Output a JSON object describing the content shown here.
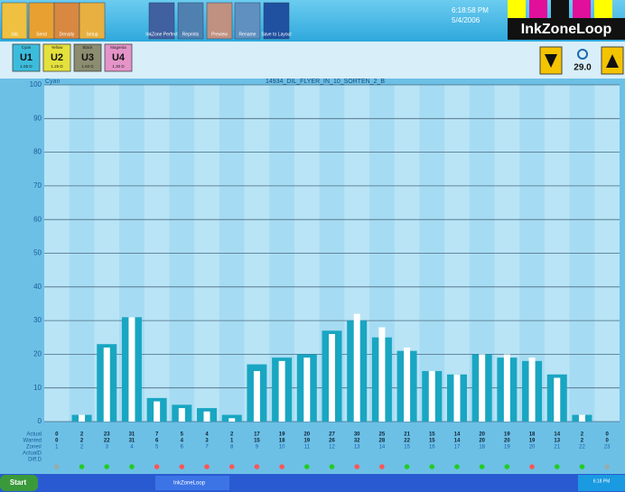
{
  "toolbar": {
    "buttons": [
      "Job",
      "Send",
      "Density",
      "Setup",
      "InkZone Perfect",
      "Reprints",
      "Preview",
      "Rename",
      "Save to Layout"
    ]
  },
  "clock": {
    "time": "6:18:58 PM",
    "date": "5/4/2006"
  },
  "brand": "InkZoneLoop",
  "units": [
    {
      "name": "Cyan",
      "id": "U1",
      "density": "1.55 D",
      "color": "#3cbcdc"
    },
    {
      "name": "Yellow",
      "id": "U2",
      "density": "1.25 D",
      "color": "#e4e03c"
    },
    {
      "name": "Black",
      "id": "U3",
      "density": "1.50 D",
      "color": "#8c8c70"
    },
    {
      "name": "Magenta",
      "id": "U4",
      "density": "1.30 D",
      "color": "#e494c8"
    }
  ],
  "zoom_value": "29.0",
  "chart_data": {
    "type": "bar",
    "title": "14934_DIL_FLYER_IN_10_SORTEN_2_B",
    "ink_label": "Cyan",
    "categories": [
      "1",
      "2",
      "3",
      "4",
      "5",
      "6",
      "7",
      "8",
      "9",
      "10",
      "11",
      "12",
      "13",
      "14",
      "15",
      "16",
      "17",
      "18",
      "19",
      "20",
      "21",
      "22",
      "23"
    ],
    "category_label": "Zone#",
    "series": [
      {
        "name": "Actual",
        "color": "#19a6c2",
        "values": [
          0,
          2,
          23,
          31,
          7,
          5,
          4,
          2,
          17,
          19,
          20,
          27,
          30,
          25,
          21,
          15,
          14,
          20,
          19,
          18,
          14,
          2,
          0
        ]
      },
      {
        "name": "Wanted",
        "color": "#ffffff",
        "values": [
          0,
          2,
          22,
          31,
          6,
          4,
          3,
          1,
          15,
          18,
          19,
          26,
          32,
          28,
          22,
          15,
          14,
          20,
          20,
          19,
          13,
          2,
          0
        ]
      }
    ],
    "extra_rows": [
      "ActualD",
      "Diff.D"
    ],
    "status_colors": [
      "#9aa",
      "#2c2",
      "#2c2",
      "#2c2",
      "#f55",
      "#f55",
      "#f55",
      "#f55",
      "#f55",
      "#f55",
      "#2c2",
      "#2c2",
      "#f55",
      "#f55",
      "#2c2",
      "#2c2",
      "#2c2",
      "#2c2",
      "#2c2",
      "#f55",
      "#2c2",
      "#2c2",
      "#9aa"
    ],
    "ylim": [
      0,
      100
    ],
    "yticks": [
      0,
      10,
      20,
      30,
      40,
      50,
      60,
      70,
      80,
      90,
      100
    ],
    "grid": true
  },
  "taskbar": {
    "start": "Start",
    "task": "InkZoneLoop",
    "time": "6:18 PM"
  }
}
